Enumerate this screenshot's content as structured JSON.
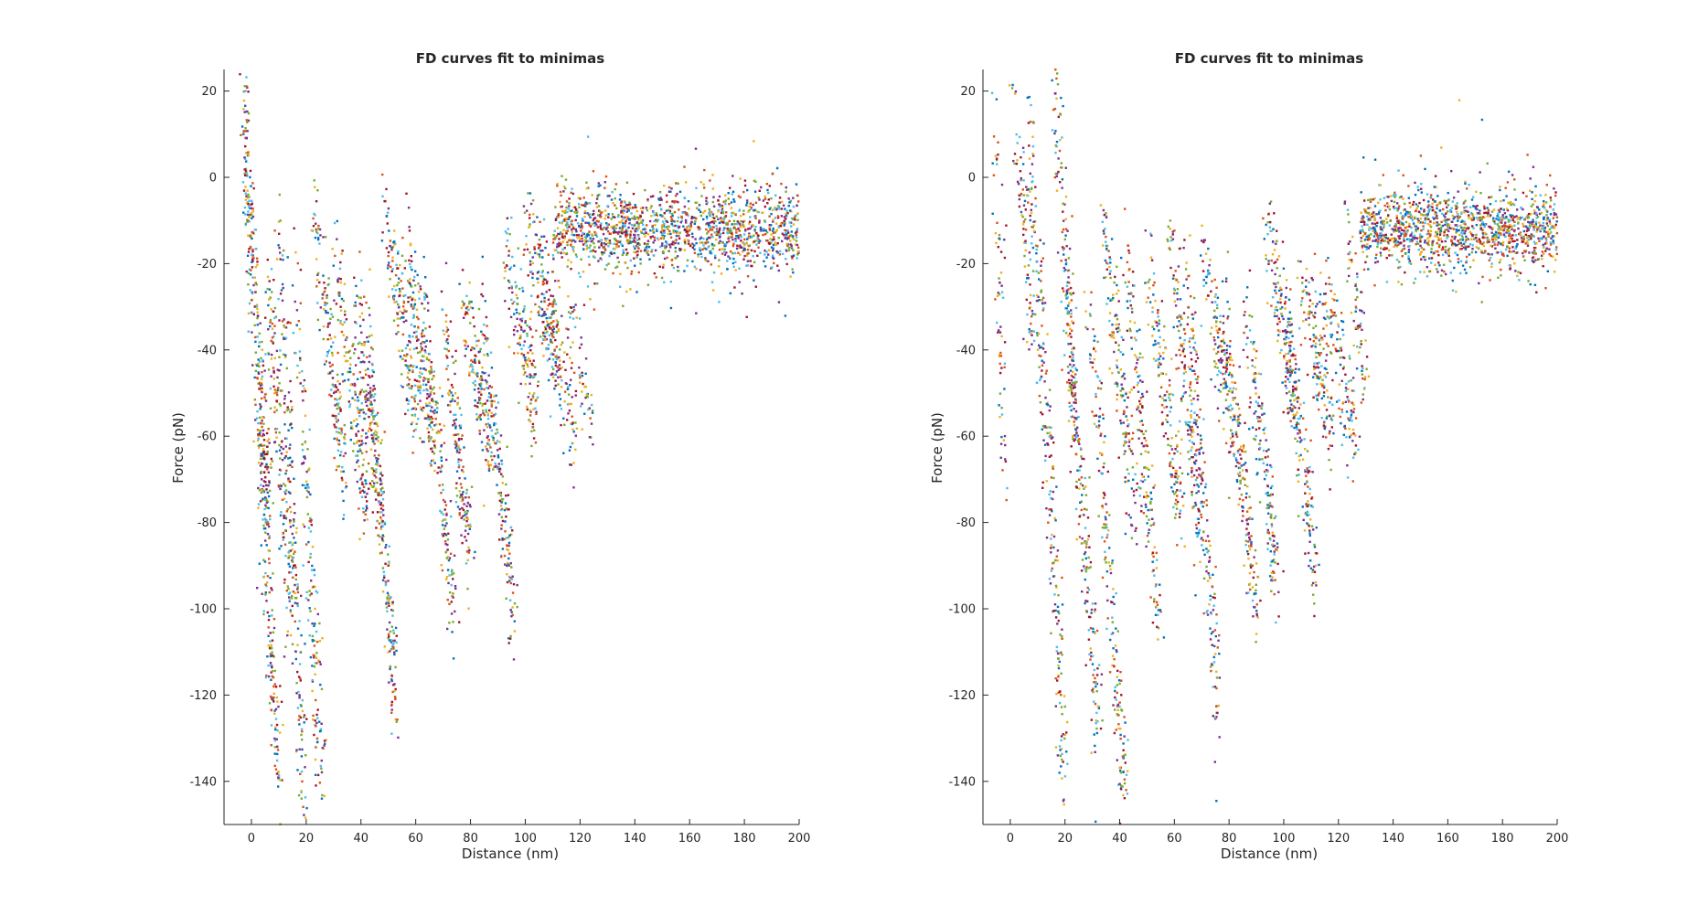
{
  "figure": {
    "background": "#ffffff",
    "palette": [
      "#0072BD",
      "#D95319",
      "#EDB120",
      "#7E2F8E",
      "#77AC30",
      "#4DBEEE",
      "#A2142F"
    ]
  },
  "chart_data": [
    {
      "type": "scatter",
      "title": "FD curves fit to minimas",
      "xlabel": "Distance (nm)",
      "ylabel": "Force (pN)",
      "xlim": [
        -10,
        200
      ],
      "ylim": [
        -150,
        25
      ],
      "xticks": [
        0,
        20,
        40,
        60,
        80,
        100,
        120,
        140,
        160,
        180,
        200
      ],
      "yticks": [
        20,
        0,
        -20,
        -40,
        -60,
        -80,
        -100,
        -120,
        -140
      ],
      "grid": false,
      "legend": "none",
      "plateau": {
        "x_start": 110,
        "x_end": 200,
        "y_mean": -12,
        "y_spread": 9,
        "points": 1500
      },
      "clusters": [
        {
          "x_start": -3,
          "x_end": 0,
          "y_top": 25,
          "y_bottom": -20,
          "points": 120
        },
        {
          "x_start": 0,
          "x_end": 6,
          "y_top": -15,
          "y_bottom": -80,
          "points": 200
        },
        {
          "x_start": 2,
          "x_end": 10,
          "y_top": -50,
          "y_bottom": -140,
          "points": 170
        },
        {
          "x_start": 6,
          "x_end": 14,
          "y_top": -20,
          "y_bottom": -100,
          "points": 160
        },
        {
          "x_start": 10,
          "x_end": 19,
          "y_top": -5,
          "y_bottom": -145,
          "points": 190
        },
        {
          "x_start": 16,
          "x_end": 26,
          "y_top": -20,
          "y_bottom": -145,
          "points": 170
        },
        {
          "x_start": 22,
          "x_end": 34,
          "y_top": -5,
          "y_bottom": -70,
          "points": 170
        },
        {
          "x_start": 30,
          "x_end": 42,
          "y_top": -15,
          "y_bottom": -75,
          "points": 170
        },
        {
          "x_start": 38,
          "x_end": 48,
          "y_top": -25,
          "y_bottom": -80,
          "points": 160
        },
        {
          "x_start": 42,
          "x_end": 53,
          "y_top": -30,
          "y_bottom": -125,
          "points": 180
        },
        {
          "x_start": 48,
          "x_end": 60,
          "y_top": -5,
          "y_bottom": -55,
          "points": 170
        },
        {
          "x_start": 56,
          "x_end": 66,
          "y_top": -15,
          "y_bottom": -60,
          "points": 150
        },
        {
          "x_start": 62,
          "x_end": 74,
          "y_top": -25,
          "y_bottom": -100,
          "points": 180
        },
        {
          "x_start": 70,
          "x_end": 80,
          "y_top": -30,
          "y_bottom": -90,
          "points": 160
        },
        {
          "x_start": 76,
          "x_end": 88,
          "y_top": -25,
          "y_bottom": -65,
          "points": 160
        },
        {
          "x_start": 84,
          "x_end": 96,
          "y_top": -30,
          "y_bottom": -100,
          "points": 170
        },
        {
          "x_start": 92,
          "x_end": 104,
          "y_top": -15,
          "y_bottom": -55,
          "points": 160
        },
        {
          "x_start": 100,
          "x_end": 112,
          "y_top": -10,
          "y_bottom": -45,
          "points": 160
        },
        {
          "x_start": 105,
          "x_end": 118,
          "y_top": -20,
          "y_bottom": -60,
          "points": 120
        },
        {
          "x_start": 115,
          "x_end": 124,
          "y_top": -30,
          "y_bottom": -55,
          "points": 60
        }
      ]
    },
    {
      "type": "scatter",
      "title": "FD curves fit to minimas",
      "xlabel": "Distance (nm)",
      "ylabel": "Force (pN)",
      "xlim": [
        -10,
        200
      ],
      "ylim": [
        -150,
        25
      ],
      "xticks": [
        0,
        20,
        40,
        60,
        80,
        100,
        120,
        140,
        160,
        180,
        200
      ],
      "yticks": [
        20,
        0,
        -20,
        -40,
        -60,
        -80,
        -100,
        -120,
        -140
      ],
      "grid": false,
      "legend": "none",
      "plateau": {
        "x_start": 128,
        "x_end": 200,
        "y_mean": -12,
        "y_spread": 8,
        "points": 1300
      },
      "clusters": [
        {
          "x_start": -6,
          "x_end": -2,
          "y_top": 25,
          "y_bottom": -70,
          "points": 70
        },
        {
          "x_start": 0,
          "x_end": 8,
          "y_top": 25,
          "y_bottom": -35,
          "points": 80
        },
        {
          "x_start": 6,
          "x_end": 12,
          "y_top": 25,
          "y_bottom": -60,
          "points": 90
        },
        {
          "x_start": 10,
          "x_end": 20,
          "y_top": -10,
          "y_bottom": -140,
          "points": 170
        },
        {
          "x_start": 16,
          "x_end": 24,
          "y_top": 25,
          "y_bottom": -60,
          "points": 150
        },
        {
          "x_start": 20,
          "x_end": 32,
          "y_top": -20,
          "y_bottom": -130,
          "points": 200
        },
        {
          "x_start": 28,
          "x_end": 42,
          "y_top": -20,
          "y_bottom": -145,
          "points": 190
        },
        {
          "x_start": 34,
          "x_end": 46,
          "y_top": -10,
          "y_bottom": -80,
          "points": 170
        },
        {
          "x_start": 42,
          "x_end": 54,
          "y_top": -15,
          "y_bottom": -100,
          "points": 170
        },
        {
          "x_start": 50,
          "x_end": 62,
          "y_top": -20,
          "y_bottom": -75,
          "points": 160
        },
        {
          "x_start": 58,
          "x_end": 70,
          "y_top": -10,
          "y_bottom": -85,
          "points": 170
        },
        {
          "x_start": 64,
          "x_end": 76,
          "y_top": -15,
          "y_bottom": -125,
          "points": 180
        },
        {
          "x_start": 70,
          "x_end": 82,
          "y_top": -15,
          "y_bottom": -60,
          "points": 150
        },
        {
          "x_start": 78,
          "x_end": 90,
          "y_top": -30,
          "y_bottom": -100,
          "points": 180
        },
        {
          "x_start": 86,
          "x_end": 98,
          "y_top": -30,
          "y_bottom": -95,
          "points": 170
        },
        {
          "x_start": 94,
          "x_end": 104,
          "y_top": -10,
          "y_bottom": -55,
          "points": 150
        },
        {
          "x_start": 100,
          "x_end": 112,
          "y_top": -25,
          "y_bottom": -95,
          "points": 170
        },
        {
          "x_start": 106,
          "x_end": 118,
          "y_top": -20,
          "y_bottom": -60,
          "points": 150
        },
        {
          "x_start": 114,
          "x_end": 126,
          "y_top": -25,
          "y_bottom": -60,
          "points": 140
        },
        {
          "x_start": 122,
          "x_end": 130,
          "y_top": -10,
          "y_bottom": -45,
          "points": 70
        }
      ]
    }
  ]
}
